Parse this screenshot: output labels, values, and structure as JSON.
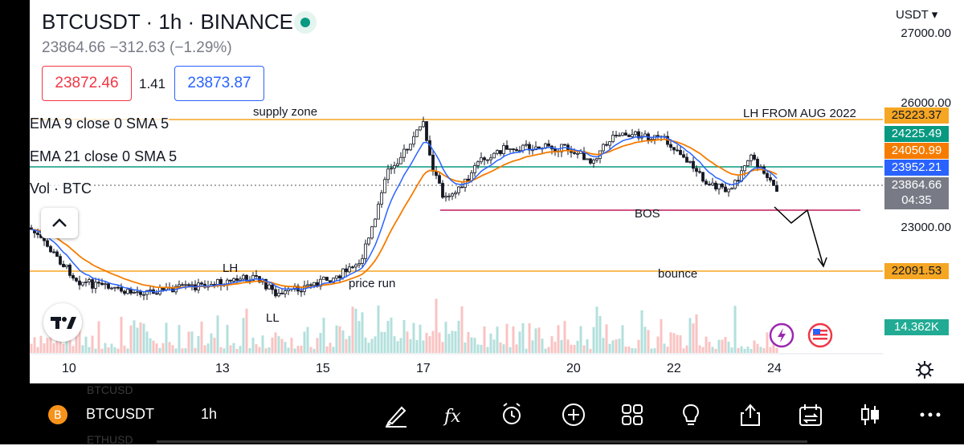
{
  "header": {
    "title": "BTCUSDT · 1h · BINANCE",
    "last_price": "23864.66",
    "change": "−312.63",
    "change_pct": "(−1.29%)",
    "bid": "23872.46",
    "spread": "1.41",
    "ask": "23873.87"
  },
  "indicators": [
    {
      "label": "EMA 9 close 0 SMA 5"
    },
    {
      "label": "EMA 21 close 0 SMA 5"
    },
    {
      "label": "Vol · BTC"
    }
  ],
  "currency": "USDT",
  "price_axis": {
    "ticks": [
      "27000.00",
      "26000.00",
      "23000.00"
    ]
  },
  "price_tags": [
    {
      "value": "25223.37",
      "color": "#f5a623"
    },
    {
      "value": "24225.49",
      "color": "#089981"
    },
    {
      "value": "24050.99",
      "color": "#f57c00"
    },
    {
      "value": "23952.21",
      "color": "#2962ff"
    },
    {
      "value": "23864.66",
      "countdown": "04:35",
      "color": "#787b86"
    },
    {
      "value": "22091.53",
      "color": "#f5a623"
    },
    {
      "value": "14.362K",
      "color": "#22ab94"
    }
  ],
  "time_axis": {
    "ticks": [
      "10",
      "13",
      "15",
      "17",
      "20",
      "22",
      "24"
    ]
  },
  "annotations": {
    "supply_zone": "supply zone",
    "lh_from_aug": "LH FROM AUG 2022",
    "bos": "BOS",
    "bounce": "bounce",
    "price_run": "price run",
    "lh": "LH",
    "ll": "LL"
  },
  "colors": {
    "up": "#26a69a",
    "down": "#ef5350",
    "ema9": "#2962ff",
    "ema21": "#f57c00",
    "level": "#f5a623",
    "teal_line": "#089981",
    "bos_line": "#c2185b"
  },
  "bottom_bar": {
    "symbol": "BTCUSDT",
    "interval": "1h",
    "ghost_above": "BTCUSD",
    "ghost_below": "ETHUSD",
    "tools": [
      "drawing-icon",
      "indicators-icon",
      "alert-icon",
      "add-icon",
      "layout-icon",
      "ideas-icon",
      "share-icon",
      "replay-icon",
      "chart-type-icon",
      "more-icon"
    ]
  }
}
